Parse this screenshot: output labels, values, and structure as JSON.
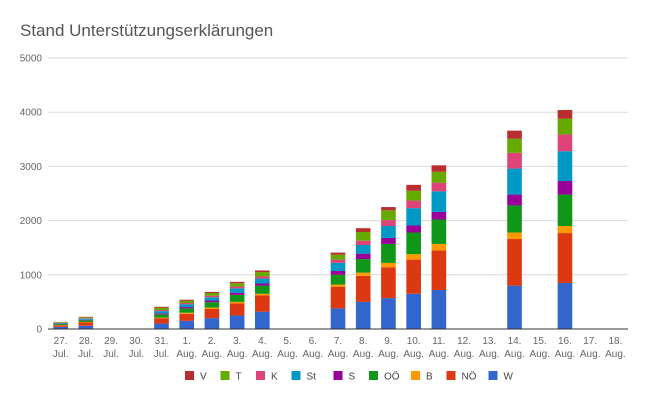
{
  "chart_data": {
    "type": "bar",
    "stacked": true,
    "title": "Stand Unterstützungserklärungen",
    "xlabel": "",
    "ylabel": "",
    "ylim": [
      0,
      5000
    ],
    "yticks": [
      "0",
      "1000",
      "2000",
      "3000",
      "4000",
      "5000"
    ],
    "grid": true,
    "legend_position": "bottom",
    "categories": [
      {
        "day": "27.",
        "month": "Jul."
      },
      {
        "day": "28.",
        "month": "Jul."
      },
      {
        "day": "29.",
        "month": "Jul."
      },
      {
        "day": "30.",
        "month": "Jul."
      },
      {
        "day": "31.",
        "month": "Jul."
      },
      {
        "day": "1.",
        "month": "Aug."
      },
      {
        "day": "2.",
        "month": "Aug."
      },
      {
        "day": "3.",
        "month": "Aug."
      },
      {
        "day": "4.",
        "month": "Aug."
      },
      {
        "day": "5.",
        "month": "Aug."
      },
      {
        "day": "6.",
        "month": "Aug."
      },
      {
        "day": "7.",
        "month": "Aug."
      },
      {
        "day": "8.",
        "month": "Aug."
      },
      {
        "day": "9.",
        "month": "Aug."
      },
      {
        "day": "10.",
        "month": "Aug."
      },
      {
        "day": "11.",
        "month": "Aug."
      },
      {
        "day": "12.",
        "month": "Aug."
      },
      {
        "day": "13.",
        "month": "Aug."
      },
      {
        "day": "14.",
        "month": "Aug."
      },
      {
        "day": "15.",
        "month": "Aug."
      },
      {
        "day": "16.",
        "month": "Aug."
      },
      {
        "day": "17.",
        "month": "Aug."
      },
      {
        "day": "18.",
        "month": "Aug."
      }
    ],
    "series": [
      {
        "name": "W",
        "color": "#3366cc",
        "values": [
          40,
          60,
          0,
          0,
          100,
          150,
          200,
          250,
          320,
          0,
          0,
          380,
          500,
          570,
          650,
          720,
          0,
          0,
          800,
          0,
          850,
          0,
          0
        ]
      },
      {
        "name": "NÖ",
        "color": "#dc3912",
        "values": [
          30,
          60,
          0,
          0,
          100,
          130,
          170,
          220,
          300,
          0,
          0,
          400,
          480,
          570,
          630,
          730,
          0,
          0,
          860,
          0,
          920,
          0,
          0
        ]
      },
      {
        "name": "B",
        "color": "#ff9900",
        "values": [
          5,
          10,
          0,
          0,
          10,
          20,
          25,
          30,
          30,
          0,
          0,
          40,
          60,
          80,
          100,
          120,
          0,
          0,
          120,
          0,
          130,
          0,
          0
        ]
      },
      {
        "name": "OÖ",
        "color": "#109618",
        "values": [
          20,
          30,
          0,
          0,
          60,
          80,
          100,
          130,
          150,
          0,
          0,
          180,
          250,
          350,
          400,
          450,
          0,
          0,
          500,
          0,
          580,
          0,
          0
        ]
      },
      {
        "name": "S",
        "color": "#990099",
        "values": [
          5,
          10,
          0,
          0,
          20,
          25,
          30,
          40,
          40,
          0,
          0,
          70,
          100,
          110,
          130,
          140,
          0,
          0,
          200,
          0,
          250,
          0,
          0
        ]
      },
      {
        "name": "St",
        "color": "#0099c6",
        "values": [
          10,
          20,
          0,
          0,
          40,
          50,
          60,
          80,
          90,
          0,
          0,
          150,
          160,
          220,
          320,
          380,
          0,
          0,
          480,
          0,
          550,
          0,
          0
        ]
      },
      {
        "name": "K",
        "color": "#dd4477",
        "values": [
          5,
          10,
          0,
          0,
          20,
          25,
          30,
          35,
          40,
          0,
          0,
          60,
          80,
          110,
          140,
          160,
          0,
          0,
          290,
          0,
          310,
          0,
          0
        ]
      },
      {
        "name": "T",
        "color": "#66aa00",
        "values": [
          10,
          15,
          0,
          0,
          40,
          40,
          50,
          60,
          80,
          0,
          0,
          90,
          160,
          180,
          180,
          200,
          0,
          0,
          260,
          0,
          290,
          0,
          0
        ]
      },
      {
        "name": "V",
        "color": "#b82e2e",
        "values": [
          5,
          10,
          0,
          0,
          20,
          20,
          20,
          25,
          30,
          0,
          0,
          40,
          70,
          60,
          110,
          120,
          0,
          0,
          150,
          0,
          160,
          0,
          0
        ]
      }
    ]
  }
}
